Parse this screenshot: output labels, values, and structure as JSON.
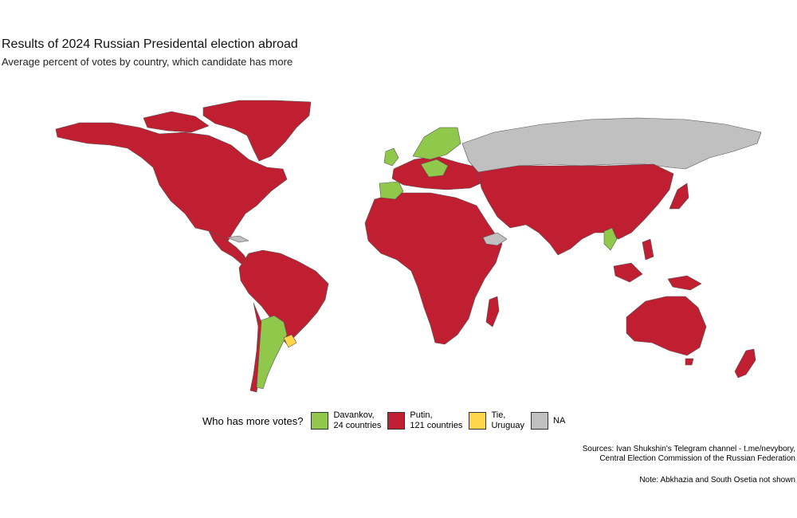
{
  "title": "Results of 2024 Russian Presidental election abroad",
  "subtitle": "Average percent of votes by country, which candidate has more",
  "legend": {
    "title": "Who has more votes?",
    "items": [
      {
        "label": "Davankov,\n24 countries",
        "color": "#8fc84a"
      },
      {
        "label": "Putin,\n121 countries",
        "color": "#c01f32"
      },
      {
        "label": "Tie,\n  Uruguay",
        "color": "#ffd54a"
      },
      {
        "label": "NA",
        "color": "#c0c0c0"
      }
    ]
  },
  "source_line1": "Sources: Ivan Shukshin's Telegram channel - t.me/nevybory,",
  "source_line2": "Central Election Commission of the Russian Federation",
  "note": "Note: Abkhazia and South Osetia not shown",
  "colors": {
    "davankov": "#8fc84a",
    "putin": "#c01f32",
    "tie": "#ffd54a",
    "na": "#c0c0c0",
    "border": "#555555"
  }
}
